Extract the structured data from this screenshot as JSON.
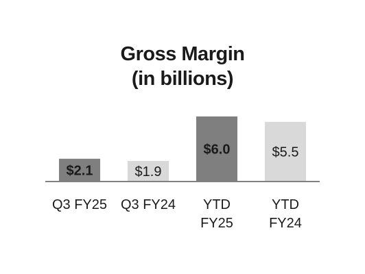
{
  "chart_data": {
    "type": "bar",
    "title_lines": [
      "Gross Margin",
      "(in billions)"
    ],
    "categories": [
      [
        "Q3 FY25"
      ],
      [
        "Q3 FY24"
      ],
      [
        "YTD",
        "FY25"
      ],
      [
        "YTD",
        "FY24"
      ]
    ],
    "values": [
      2.1,
      1.9,
      6.0,
      5.5
    ],
    "data_labels": [
      "$2.1",
      "$1.9",
      "$6.0",
      "$5.5"
    ],
    "bar_colors": [
      "#7f7f7f",
      "#d9d9d9",
      "#7f7f7f",
      "#d9d9d9"
    ],
    "label_bold": [
      true,
      false,
      true,
      false
    ],
    "axis_color": "#808080",
    "ylim": [
      0,
      6.0
    ],
    "grid": false,
    "legend": "none"
  }
}
